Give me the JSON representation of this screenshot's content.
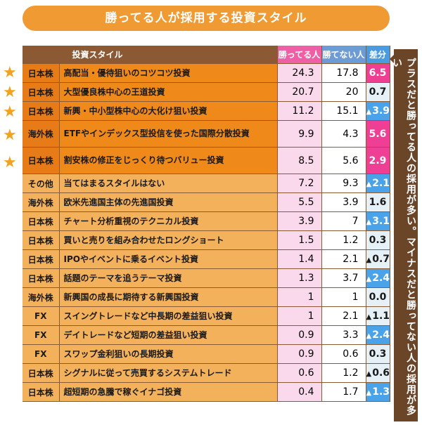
{
  "title": "勝ってる人が採用する投資スタイル",
  "side_note": "プラスだと勝ってる人の採用が多い。マイナスだと勝ってない人の採用が多い",
  "headers": {
    "style": "投資スタイル",
    "win": "勝ってる人",
    "lose": "勝てない人",
    "diff": "差分"
  },
  "rows": [
    {
      "cat": "日本株",
      "style": "高配当・優待狙いのコツコツ投資",
      "win": "24.3",
      "lose": "17.8",
      "diff": "6.5",
      "sign": "pos",
      "star": true
    },
    {
      "cat": "日本株",
      "style": "大型優良株中心の王道投資",
      "win": "20.7",
      "lose": "20",
      "diff": "0.7",
      "sign": "zero",
      "star": true
    },
    {
      "cat": "日本株",
      "style": "新興・中小型株中心の大化け狙い投資",
      "win": "11.2",
      "lose": "15.1",
      "diff": "3.9",
      "sign": "neg",
      "star": true
    },
    {
      "cat": "海外株",
      "style": "ETFやインデックス型投信を使った国際分散投資",
      "win": "9.9",
      "lose": "4.3",
      "diff": "5.6",
      "sign": "pos",
      "star": true
    },
    {
      "cat": "日本株",
      "style": "割安株の修正をじっくり待つバリュー投資",
      "win": "8.5",
      "lose": "5.6",
      "diff": "2.9",
      "sign": "pos",
      "star": true
    },
    {
      "cat": "その他",
      "style": "当てはまるスタイルはない",
      "win": "7.2",
      "lose": "9.3",
      "diff": "2.1",
      "sign": "neg",
      "star": false
    },
    {
      "cat": "海外株",
      "style": "欧米先進国主体の先進国投資",
      "win": "5.5",
      "lose": "3.9",
      "diff": "1.6",
      "sign": "zero",
      "star": false
    },
    {
      "cat": "日本株",
      "style": "チャート分析重視のテクニカル投資",
      "win": "3.9",
      "lose": "7",
      "diff": "3.1",
      "sign": "neg",
      "star": false
    },
    {
      "cat": "日本株",
      "style": "買いと売りを組み合わせたロングショート",
      "win": "1.5",
      "lose": "1.2",
      "diff": "0.3",
      "sign": "zero",
      "star": false
    },
    {
      "cat": "日本株",
      "style": "IPOやイベントに乗るイベント投資",
      "win": "1.4",
      "lose": "2.1",
      "diff": "0.7",
      "sign": "negplain",
      "star": false
    },
    {
      "cat": "日本株",
      "style": "話題のテーマを追うテーマ投資",
      "win": "1.3",
      "lose": "3.7",
      "diff": "2.4",
      "sign": "neg",
      "star": false
    },
    {
      "cat": "海外株",
      "style": "新興国の成長に期待する新興国投資",
      "win": "1",
      "lose": "1",
      "diff": "0.0",
      "sign": "zero",
      "star": false
    },
    {
      "cat": "FX",
      "style": "スイングトレードなど中長期の差益狙い投資",
      "win": "1",
      "lose": "2.1",
      "diff": "1.1",
      "sign": "negplain",
      "star": false
    },
    {
      "cat": "FX",
      "style": "デイトレードなど短期の差益狙い投資",
      "win": "0.9",
      "lose": "3.3",
      "diff": "2.4",
      "sign": "neg",
      "star": false
    },
    {
      "cat": "FX",
      "style": "スワップ金利狙いの長期投資",
      "win": "0.9",
      "lose": "0.6",
      "diff": "0.3",
      "sign": "zero",
      "star": false
    },
    {
      "cat": "日本株",
      "style": "シグナルに従って売買するシステムトレード",
      "win": "0.6",
      "lose": "1.2",
      "diff": "0.6",
      "sign": "negplain",
      "star": false
    },
    {
      "cat": "日本株",
      "style": "超短期の急騰で稼ぐイナゴ投資",
      "win": "0.4",
      "lose": "1.7",
      "diff": "1.3",
      "sign": "neg",
      "star": false
    }
  ],
  "colors": {
    "title_bg": "#ef9a33",
    "header_bg": "#8b5a34",
    "win_header": "#ef5fa5",
    "lose_header": "#6d9bd6",
    "diff_header": "#4a9be0",
    "pos_diff": "#ef3f95",
    "neg_diff": "#4aa3e8",
    "star": "#f1a21f"
  },
  "chart_data": {
    "type": "table",
    "title": "勝ってる人が採用する投資スタイル",
    "columns": [
      "投資スタイル",
      "勝ってる人",
      "勝てない人",
      "差分"
    ]
  }
}
